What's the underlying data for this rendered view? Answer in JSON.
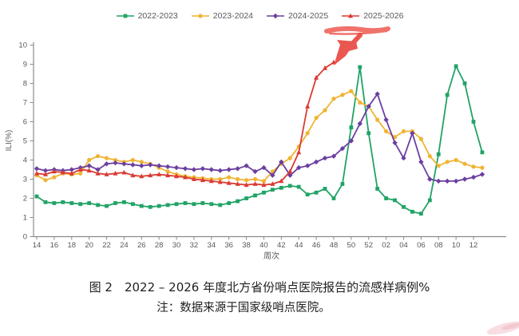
{
  "caption": {
    "title": "图 2　2022 – 2026 年度北方省份哨点医院报告的流感样病例%",
    "note": "注：数据来源于国家级哨点医院。"
  },
  "annotations": {
    "scribble_color": "#ee5a52",
    "arrow_color": "#e8453f",
    "smudge_color": "#f0b6bf"
  },
  "axis_colors": {
    "line": "#8c8c8c",
    "tick_text": "#595959"
  },
  "chart_data": {
    "type": "line",
    "title": "",
    "xlabel": "周次",
    "ylabel": "ILI(%)",
    "ylim": [
      0,
      10
    ],
    "yticks": [
      0,
      1,
      2,
      3,
      4,
      5,
      6,
      7,
      8,
      9,
      10
    ],
    "grid": false,
    "legend_position": "top-center",
    "xtick_every": 2,
    "categories": [
      "14",
      "15",
      "16",
      "17",
      "18",
      "19",
      "20",
      "21",
      "22",
      "23",
      "24",
      "25",
      "26",
      "27",
      "28",
      "29",
      "30",
      "31",
      "32",
      "33",
      "34",
      "35",
      "36",
      "37",
      "38",
      "39",
      "40",
      "41",
      "42",
      "43",
      "44",
      "45",
      "46",
      "47",
      "48",
      "49",
      "50",
      "51",
      "52",
      "01",
      "02",
      "03",
      "04",
      "05",
      "06",
      "07",
      "08",
      "09",
      "10",
      "11",
      "12",
      "13"
    ],
    "series": [
      {
        "name": "2022-2023",
        "color": "#21a366",
        "marker": "square",
        "values": [
          2.1,
          1.8,
          1.75,
          1.8,
          1.75,
          1.7,
          1.75,
          1.65,
          1.6,
          1.75,
          1.8,
          1.7,
          1.6,
          1.55,
          1.6,
          1.65,
          1.7,
          1.75,
          1.7,
          1.75,
          1.7,
          1.65,
          1.75,
          1.85,
          2.0,
          2.15,
          2.3,
          2.45,
          2.55,
          2.65,
          2.6,
          2.2,
          2.3,
          2.5,
          2.0,
          2.75,
          5.7,
          8.85,
          5.4,
          2.5,
          2.0,
          1.9,
          1.55,
          1.3,
          1.2,
          1.9,
          4.3,
          7.4,
          8.9,
          8.0,
          6.0,
          4.4
        ]
      },
      {
        "name": "2023-2024",
        "color": "#f0b434",
        "marker": "circle",
        "values": [
          3.2,
          2.95,
          3.1,
          3.3,
          3.25,
          3.3,
          4.0,
          4.2,
          4.1,
          4.0,
          3.9,
          4.0,
          3.9,
          3.8,
          3.6,
          3.4,
          3.25,
          3.15,
          3.1,
          3.05,
          3.0,
          3.0,
          3.1,
          3.0,
          2.95,
          3.0,
          2.9,
          3.4,
          3.8,
          4.1,
          4.7,
          5.4,
          6.2,
          6.6,
          7.2,
          7.4,
          7.6,
          7.0,
          6.8,
          6.1,
          5.5,
          5.2,
          5.5,
          5.5,
          5.1,
          4.2,
          3.7,
          3.9,
          4.0,
          3.8,
          3.65,
          3.6
        ]
      },
      {
        "name": "2024-2025",
        "color": "#6b3fa0",
        "marker": "diamond",
        "values": [
          3.55,
          3.45,
          3.5,
          3.45,
          3.5,
          3.6,
          3.7,
          3.5,
          3.8,
          3.85,
          3.8,
          3.75,
          3.7,
          3.75,
          3.7,
          3.65,
          3.6,
          3.55,
          3.5,
          3.55,
          3.5,
          3.45,
          3.5,
          3.55,
          3.7,
          3.4,
          3.6,
          3.2,
          3.9,
          3.2,
          3.6,
          3.7,
          3.9,
          4.1,
          4.2,
          4.6,
          5.0,
          5.9,
          6.8,
          7.45,
          6.1,
          4.9,
          4.1,
          5.4,
          3.9,
          3.0,
          2.9,
          2.9,
          2.9,
          3.0,
          3.1,
          3.25
        ]
      },
      {
        "name": "2025-2026",
        "color": "#d93b34",
        "marker": "triangle",
        "values": [
          3.3,
          3.25,
          3.4,
          3.35,
          3.3,
          3.5,
          3.45,
          3.3,
          3.25,
          3.3,
          3.35,
          3.2,
          3.15,
          3.2,
          3.25,
          3.2,
          3.15,
          3.1,
          3.0,
          2.95,
          2.9,
          2.85,
          2.8,
          2.75,
          2.7,
          2.75,
          2.7,
          2.75,
          2.9,
          3.4,
          4.4,
          6.8,
          8.3,
          8.8,
          9.1
        ]
      }
    ]
  }
}
